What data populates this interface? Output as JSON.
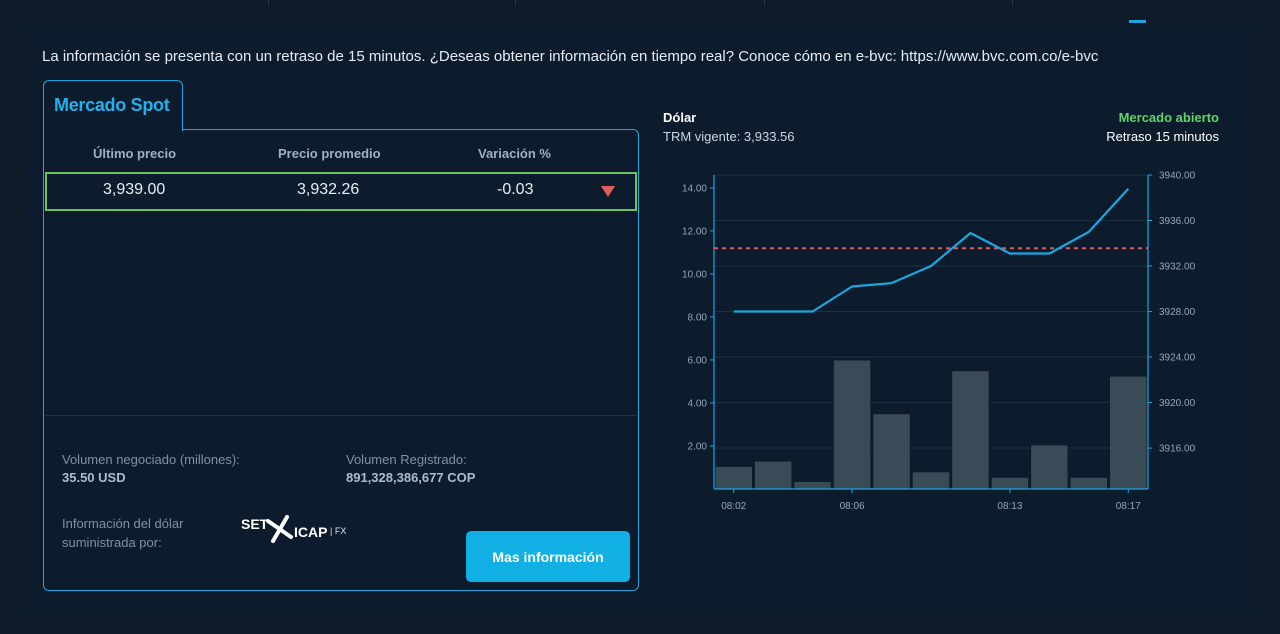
{
  "notice": "La información se presenta con un retraso de 15 minutos. ¿Deseas obtener información en tiempo real? Conoce cómo en e-bvc: https://www.bvc.com.co/e-bvc",
  "tab": {
    "label": "Mercado Spot"
  },
  "table": {
    "headers": [
      "Último precio",
      "Precio promedio",
      "Variación %"
    ],
    "row": {
      "last_price": "3,939.00",
      "avg_price": "3,932.26",
      "variation": "-0.03",
      "trend_icon": "down-triangle-icon"
    }
  },
  "stats": {
    "volume_label": "Volumen negociado (millones):",
    "volume_value": "35.50 USD",
    "registered_label": "Volumen Registrado:",
    "registered_value": "891,328,386,677 COP",
    "provider_label_1": "Información del dólar",
    "provider_label_2": "suministrada por:",
    "provider_logo_text": {
      "set": "SET",
      "icap": "ICAP",
      "fx": "| FX"
    }
  },
  "button": {
    "label": "Mas información"
  },
  "chart_header": {
    "title": "Dólar",
    "trm": "TRM vigente: 3,933.56",
    "status": "Mercado abierto",
    "delay": "Retraso 15 minutos"
  },
  "colors": {
    "accent": "#1aa7e0",
    "positive": "#63d26a",
    "negative": "#e35a5a",
    "button": "#10b0e5",
    "bar": "#3a4b58",
    "ref_line": "#e35a5a"
  },
  "chart_data": {
    "type": "bar+line",
    "x_tick_labels": [
      "08:02",
      "08:06",
      "08:13",
      "08:17"
    ],
    "x_tick_index": [
      0,
      3,
      7,
      10
    ],
    "left_axis": {
      "ticks": [
        "2.00",
        "4.00",
        "6.00",
        "8.00",
        "10.00",
        "12.00",
        "14.00"
      ],
      "ylim": [
        0,
        14.6
      ]
    },
    "right_axis": {
      "ticks": [
        "3916.00",
        "3920.00",
        "3924.00",
        "3928.00",
        "3932.00",
        "3936.00",
        "3940.00"
      ],
      "ylim": [
        3912.4,
        3940.0
      ]
    },
    "series": [
      {
        "kind": "bar",
        "axis": "left",
        "values": [
          1.05,
          1.3,
          0.35,
          6.0,
          3.5,
          0.8,
          5.5,
          0.55,
          2.05,
          0.55,
          5.25
        ]
      },
      {
        "kind": "line",
        "axis": "right",
        "values": [
          3928.0,
          3928.0,
          3928.0,
          3930.2,
          3930.5,
          3932.0,
          3934.9,
          3933.1,
          3933.1,
          3935.0,
          3938.8
        ]
      }
    ],
    "reference_line": {
      "axis": "right",
      "value": 3933.56,
      "style": "dashed"
    },
    "grid": true
  }
}
